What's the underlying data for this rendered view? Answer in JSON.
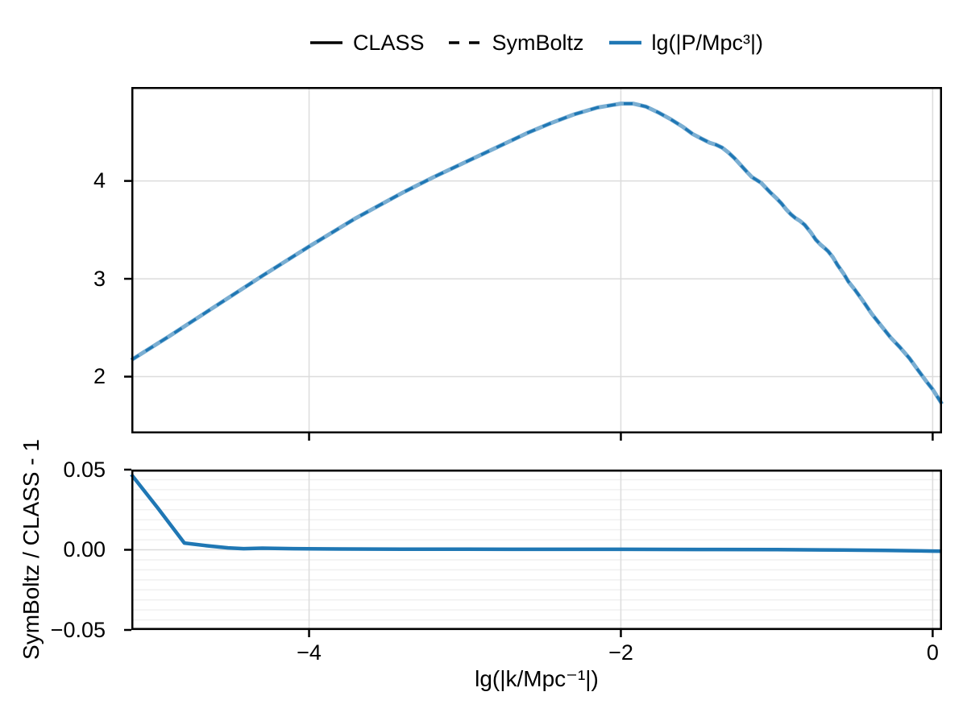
{
  "figure": {
    "background": "#ffffff"
  },
  "legend": {
    "items": [
      {
        "label": "CLASS",
        "line": "solid",
        "color": "#000000",
        "sample_width": 3.5
      },
      {
        "label": "SymBoltz",
        "line": "dashed",
        "color": "#000000",
        "sample_width": 3.5
      },
      {
        "label": "lg(|P/Mpc³|)",
        "line": "solid",
        "color": "#1f77b4",
        "sample_width": 4.5
      }
    ]
  },
  "axes": {
    "xlabel": "lg(|k/Mpc⁻¹|)",
    "ylabel_bottom": "SymBoltz / CLASS - 1"
  },
  "colors": {
    "class_line": "#7aaed2",
    "symboltz_line": "#1f77b4",
    "residual_line": "#1f77b4",
    "grid_major": "#dcdcdc",
    "grid_minor": "#f0f0f0",
    "spine": "#000000",
    "text": "#000000"
  },
  "chart_data": [
    {
      "id": "power-spectrum",
      "type": "line",
      "title": "",
      "xlabel": "lg(|k/Mpc⁻¹|)",
      "ylabel": "lg(|P/Mpc³|)",
      "xlim": [
        -5.14,
        0.06
      ],
      "ylim": [
        1.42,
        4.96
      ],
      "xticks": [
        -4,
        -2,
        0
      ],
      "xtick_labels": [],
      "yticks": [
        2,
        3,
        4
      ],
      "ytick_labels": [
        "2",
        "3",
        "4"
      ],
      "grid": "major",
      "x": [
        -5.14,
        -4.9,
        -4.6,
        -4.3,
        -4.0,
        -3.7,
        -3.4,
        -3.2,
        -3.0,
        -2.8,
        -2.6,
        -2.45,
        -2.3,
        -2.15,
        -2.0,
        -1.92,
        -1.84,
        -1.76,
        -1.68,
        -1.6,
        -1.54,
        -1.48,
        -1.43,
        -1.39,
        -1.35,
        -1.31,
        -1.27,
        -1.23,
        -1.19,
        -1.16,
        -1.13,
        -1.1,
        -1.07,
        -1.04,
        -1.0,
        -0.97,
        -0.94,
        -0.91,
        -0.88,
        -0.85,
        -0.82,
        -0.78,
        -0.75,
        -0.72,
        -0.69,
        -0.67,
        -0.64,
        -0.61,
        -0.57,
        -0.54,
        -0.5,
        -0.45,
        -0.39,
        -0.33,
        -0.27,
        -0.21,
        -0.15,
        -0.1,
        -0.04,
        0.0,
        0.06
      ],
      "y": [
        2.17,
        2.41,
        2.72,
        3.03,
        3.33,
        3.62,
        3.88,
        4.04,
        4.19,
        4.34,
        4.49,
        4.59,
        4.68,
        4.75,
        4.79,
        4.79,
        4.76,
        4.7,
        4.63,
        4.55,
        4.48,
        4.43,
        4.39,
        4.37,
        4.34,
        4.29,
        4.23,
        4.16,
        4.09,
        4.04,
        4.01,
        3.98,
        3.93,
        3.88,
        3.82,
        3.77,
        3.71,
        3.66,
        3.62,
        3.59,
        3.55,
        3.47,
        3.4,
        3.35,
        3.31,
        3.28,
        3.22,
        3.14,
        3.05,
        2.97,
        2.89,
        2.78,
        2.64,
        2.52,
        2.4,
        2.3,
        2.19,
        2.08,
        1.95,
        1.87,
        1.72
      ],
      "series": [
        {
          "name": "CLASS",
          "style": "solid",
          "color_key": "class_line",
          "width": 5.0
        },
        {
          "name": "SymBoltz",
          "style": "dashed",
          "color_key": "symboltz_line",
          "width": 3.4
        }
      ]
    },
    {
      "id": "residual",
      "type": "line",
      "title": "",
      "xlabel": "lg(|k/Mpc⁻¹|)",
      "ylabel": "SymBoltz / CLASS - 1",
      "xlim": [
        -5.14,
        0.06
      ],
      "ylim": [
        -0.05,
        0.05
      ],
      "xticks": [
        -4,
        -2,
        0
      ],
      "xtick_labels": [
        "−4",
        "−2",
        "0"
      ],
      "yticks": [
        0.05,
        0.0,
        -0.05
      ],
      "ytick_labels": [
        "0.05",
        "0.00",
        "−0.05"
      ],
      "grid": "major+minor-y",
      "minor_y_step": 0.00625,
      "x": [
        -5.14,
        -4.97,
        -4.8,
        -4.66,
        -4.52,
        -4.42,
        -4.3,
        -4.1,
        -3.8,
        -3.4,
        -3.0,
        -2.5,
        -2.0,
        -1.5,
        -1.0,
        -0.6,
        -0.3,
        0.0,
        0.06
      ],
      "y": [
        0.047,
        0.026,
        0.0042,
        0.0026,
        0.0012,
        0.0007,
        0.001,
        0.0007,
        0.0005,
        0.0004,
        0.0004,
        0.0003,
        0.0003,
        0.0002,
        0.0001,
        -0.0001,
        -0.0004,
        -0.0008,
        -0.0009
      ],
      "series": [
        {
          "name": "SymBoltz / CLASS - 1",
          "style": "solid",
          "color_key": "residual_line",
          "width": 4.5
        }
      ]
    }
  ]
}
